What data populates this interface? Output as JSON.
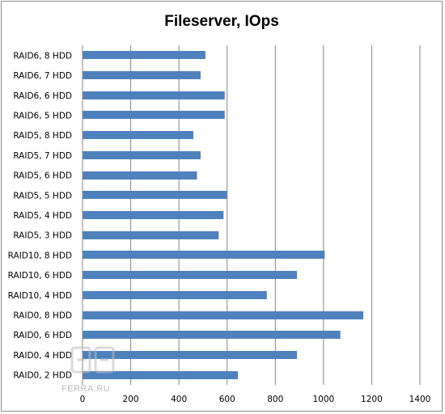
{
  "chart_data": {
    "type": "bar",
    "orientation": "horizontal",
    "title": "Fileserver, IOps",
    "xlabel": "",
    "ylabel": "",
    "categories": [
      "RAID6, 8 HDD",
      "RAID6, 7 HDD",
      "RAID6, 6 HDD",
      "RAID6, 5 HDD",
      "RAID5, 8 HDD",
      "RAID5, 7 HDD",
      "RAID5, 6 HDD",
      "RAID5, 5 HDD",
      "RAID5, 4 HDD",
      "RAID5, 3 HDD",
      "RAID10, 8 HDD",
      "RAID10, 6 HDD",
      "RAID10, 4 HDD",
      "RAID0, 8 HDD",
      "RAID0, 6 HDD",
      "RAID0, 4 HDD",
      "RAID0, 2 HDD"
    ],
    "values": [
      510,
      490,
      590,
      590,
      460,
      490,
      475,
      600,
      585,
      565,
      1005,
      890,
      765,
      1165,
      1070,
      890,
      645
    ],
    "xlim": [
      0,
      1400
    ],
    "xticks": [
      0,
      200,
      400,
      600,
      800,
      1000,
      1200,
      1400
    ],
    "grid": true,
    "legend": "none",
    "bar_color": "#4f81bd",
    "watermark": "FERRA.RU"
  }
}
